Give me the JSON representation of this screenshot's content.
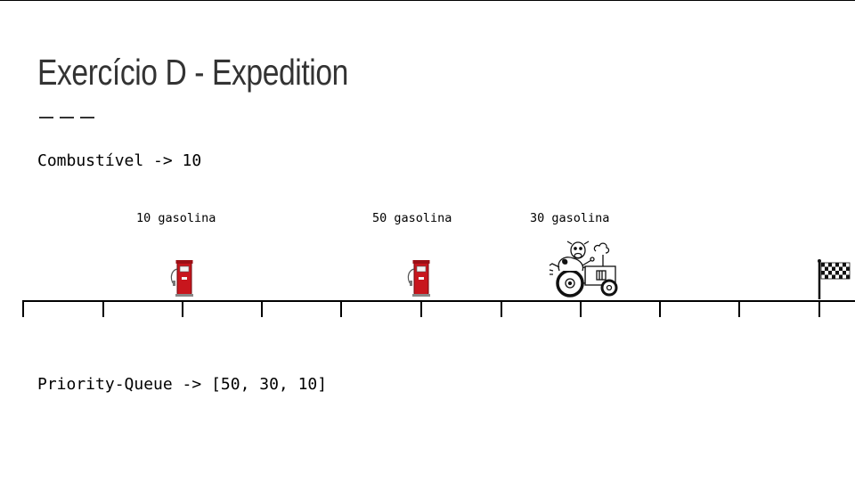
{
  "slide": {
    "title": "Exercício D - Expedition",
    "fuel_text": "Combustível -> 10",
    "priority_queue_text": "Priority-Queue -> [50, 30, 10]"
  },
  "stations": [
    {
      "label": "10 gasolina",
      "icon": "gas-pump-icon"
    },
    {
      "label": "50 gasolina",
      "icon": "gas-pump-icon"
    },
    {
      "label": "30 gasolina",
      "icon": "tractor-cow-icon"
    }
  ],
  "finish": {
    "icon": "checkered-flag-icon"
  },
  "colors": {
    "pump_red": "#c8161d",
    "line": "#000000",
    "title": "#333333"
  }
}
